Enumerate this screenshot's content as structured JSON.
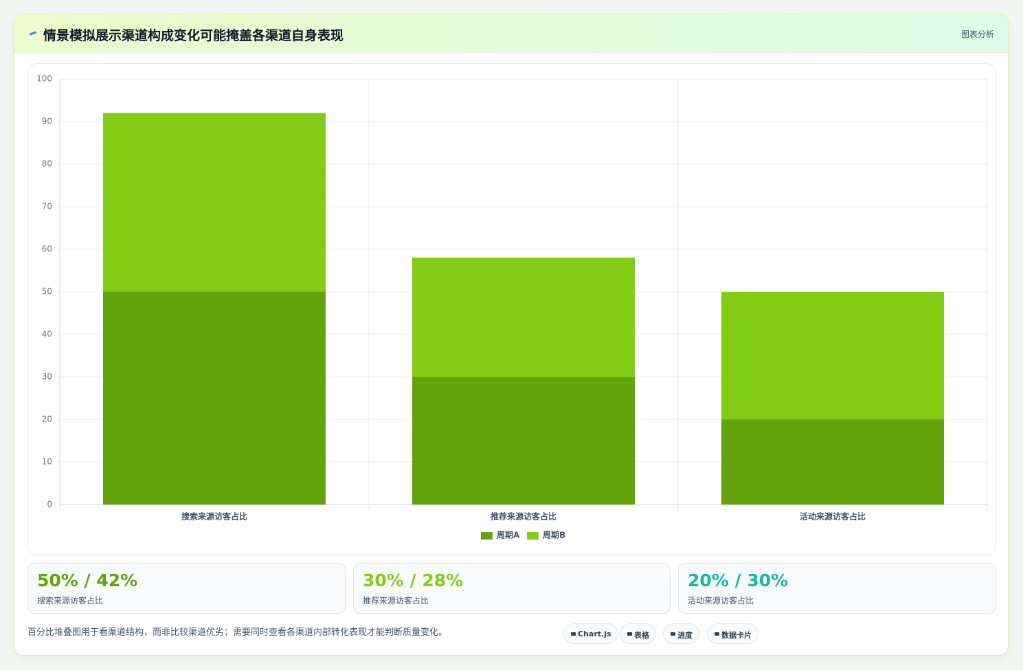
{
  "header": {
    "title": "情景模拟展示渠道构成变化可能掩盖各渠道自身表现",
    "badge": "图表分析"
  },
  "chart_data": {
    "type": "bar",
    "stacked": true,
    "categories": [
      "搜索来源访客占比",
      "推荐来源访客占比",
      "活动来源访客占比"
    ],
    "series": [
      {
        "name": "周期A",
        "color": "#65a30d",
        "values": [
          50,
          30,
          20
        ]
      },
      {
        "name": "周期B",
        "color": "#84cc16",
        "values": [
          42,
          28,
          30
        ]
      }
    ],
    "ylim": [
      0,
      100
    ],
    "yticks": [
      0,
      10,
      20,
      30,
      40,
      50,
      60,
      70,
      80,
      90,
      100
    ],
    "grid": true,
    "legend": "bottom"
  },
  "cards": [
    {
      "value": "50% / 42%",
      "label": "搜索来源访客占比",
      "color": "#65a30d"
    },
    {
      "value": "30% / 28%",
      "label": "推荐来源访客占比",
      "color": "#84cc16"
    },
    {
      "value": "20% / 30%",
      "label": "活动来源访客占比",
      "color": "#14b8a6"
    }
  ],
  "footer": {
    "note": "百分比堆叠图用于看渠道结构，而非比较渠道优劣；需要同时查看各渠道内部转化表现才能判断质量变化。",
    "chips": [
      "Chart.js",
      "表格",
      "进度",
      "数据卡片"
    ]
  }
}
